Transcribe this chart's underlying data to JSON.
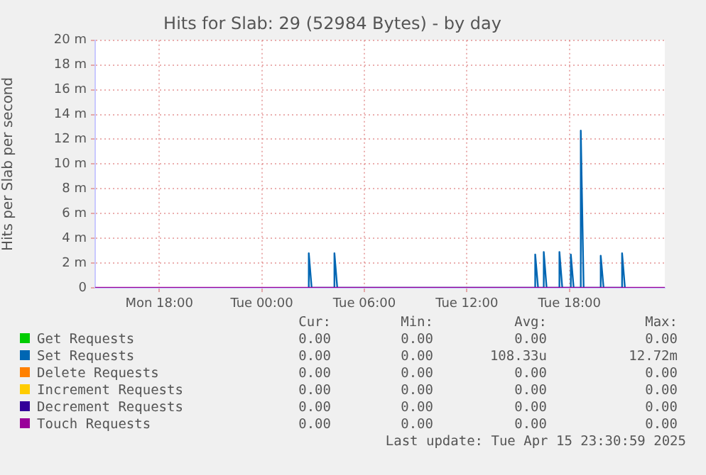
{
  "chart_data": {
    "type": "line",
    "title": "Hits for Slab: 29 (52984 Bytes) - by day",
    "ylabel": "Hits per Slab per second",
    "xlim": [
      "2025-04-14T14:15",
      "2025-04-15T23:35"
    ],
    "xticks": [
      {
        "value": "2025-04-14T18:00",
        "label": "Mon 18:00"
      },
      {
        "value": "2025-04-15T00:00",
        "label": "Tue 00:00"
      },
      {
        "value": "2025-04-15T06:00",
        "label": "Tue 06:00"
      },
      {
        "value": "2025-04-15T12:00",
        "label": "Tue 12:00"
      },
      {
        "value": "2025-04-15T18:00",
        "label": "Tue 18:00"
      }
    ],
    "ylim": [
      0,
      20
    ],
    "yticks": [
      0,
      {
        "value": 2,
        "label": "2 m"
      },
      {
        "value": 4,
        "label": "4 m"
      },
      {
        "value": 6,
        "label": "6 m"
      },
      {
        "value": 8,
        "label": "8 m"
      },
      {
        "value": 10,
        "label": "10 m"
      },
      {
        "value": 12,
        "label": "12 m"
      },
      {
        "value": 14,
        "label": "14 m"
      },
      {
        "value": 16,
        "label": "16 m"
      },
      {
        "value": 18,
        "label": "18 m"
      },
      {
        "value": 20,
        "label": "20 m"
      }
    ],
    "grid": true,
    "legend": "bottom",
    "marker": "none",
    "line_style": "solid",
    "series": [
      {
        "name": "Get Requests",
        "color": "#00cc00"
      },
      {
        "name": "Set Requests",
        "color": "#0066b3",
        "x": [
          "2025-04-15T02:45",
          "2025-04-15T02:45",
          "2025-04-15T02:55",
          "2025-04-15T04:15",
          "2025-04-15T04:15",
          "2025-04-15T04:25",
          "2025-04-15T16:00",
          "2025-04-15T16:00",
          "2025-04-15T16:10",
          "2025-04-15T16:30",
          "2025-04-15T16:30",
          "2025-04-15T16:40",
          "2025-04-15T17:25",
          "2025-04-15T17:25",
          "2025-04-15T17:35",
          "2025-04-15T18:05",
          "2025-04-15T18:05",
          "2025-04-15T18:15",
          "2025-04-15T18:40",
          "2025-04-15T18:40",
          "2025-04-15T18:50",
          "2025-04-15T19:50",
          "2025-04-15T19:50",
          "2025-04-15T20:00",
          "2025-04-15T21:05",
          "2025-04-15T21:05",
          "2025-04-15T21:15"
        ],
        "values": [
          0,
          2.8,
          0,
          0,
          2.8,
          0,
          0,
          2.7,
          0,
          0,
          2.9,
          0,
          0,
          2.9,
          0,
          0,
          2.7,
          0,
          0,
          12.7,
          0,
          0,
          2.6,
          0,
          0,
          2.8,
          0
        ]
      },
      {
        "name": "Delete Requests",
        "color": "#ff8000"
      },
      {
        "name": "Increment Requests",
        "color": "#ffcc00"
      },
      {
        "name": "Decrement Requests",
        "color": "#330099"
      },
      {
        "name": "Touch Requests",
        "color": "#990099",
        "x": [
          "2025-04-14T14:15",
          "2025-04-15T23:35"
        ],
        "values": [
          0,
          0
        ]
      }
    ],
    "annotations": [
      "Cur:",
      "Min:",
      "Avg:",
      "Max:",
      "0.00",
      "0.00",
      "0.00",
      "0.00",
      "0.00",
      "0.00",
      "108.33u",
      "12.72m",
      "0.00",
      "0.00",
      "0.00",
      "0.00",
      "0.00",
      "0.00",
      "0.00",
      "0.00",
      "0.00",
      "0.00",
      "0.00",
      "0.00",
      "0.00",
      "0.00",
      "0.00",
      "0.00",
      "Last update: Tue Apr 15 23:30:59 2025"
    ]
  }
}
